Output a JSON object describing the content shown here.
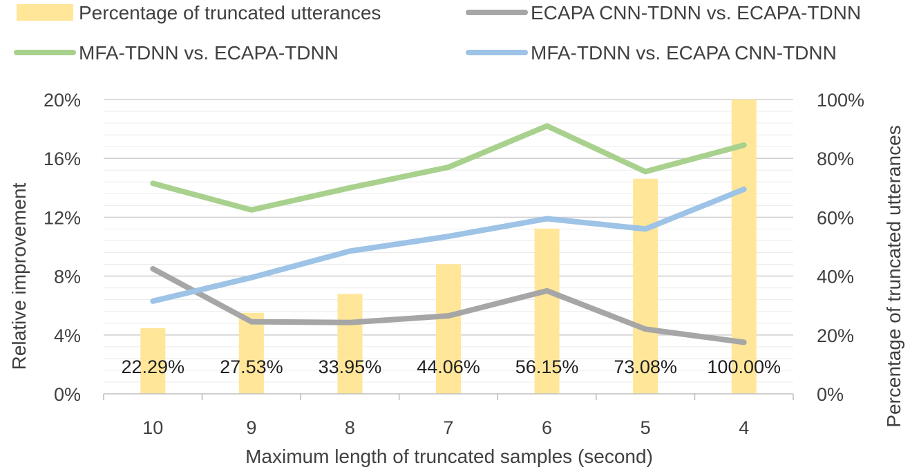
{
  "chart_data": {
    "type": "bar+line",
    "title": "",
    "xlabel": "Maximum length of truncated samples (second)",
    "ylabel_left": "Relative improvement",
    "ylabel_right": "Percentage of truncated utterances",
    "categories": [
      "10",
      "9",
      "8",
      "7",
      "6",
      "5",
      "4"
    ],
    "ylim_left": [
      0,
      20
    ],
    "ylim_right": [
      0,
      100
    ],
    "left_ticks": [
      "0%",
      "4%",
      "8%",
      "12%",
      "16%",
      "20%"
    ],
    "right_ticks": [
      "0%",
      "20%",
      "40%",
      "60%",
      "80%",
      "100%"
    ],
    "grid": true,
    "legend_position": "top",
    "bars": {
      "name": "Percentage of truncated utterances",
      "axis": "right",
      "color": "#FFE699",
      "values": [
        22.29,
        27.53,
        33.95,
        44.06,
        56.15,
        73.08,
        100.0
      ],
      "labels": [
        "22.29%",
        "27.53%",
        "33.95%",
        "44.06%",
        "56.15%",
        "73.08%",
        "100.00%"
      ]
    },
    "series": [
      {
        "name": "ECAPA CNN-TDNN vs. ECAPA-TDNN",
        "axis": "left",
        "color": "#A6A6A6",
        "values": [
          8.5,
          4.9,
          4.85,
          5.3,
          7.0,
          4.4,
          3.5
        ]
      },
      {
        "name": "MFA-TDNN vs. ECAPA-TDNN",
        "axis": "left",
        "color": "#A9D18E",
        "values": [
          14.3,
          12.5,
          14.0,
          15.4,
          18.2,
          15.1,
          16.9
        ]
      },
      {
        "name": "MFA-TDNN vs. ECAPA CNN-TDNN",
        "axis": "left",
        "color": "#9DC3E6",
        "values": [
          6.3,
          7.9,
          9.7,
          10.7,
          11.9,
          11.2,
          13.9
        ]
      }
    ]
  }
}
